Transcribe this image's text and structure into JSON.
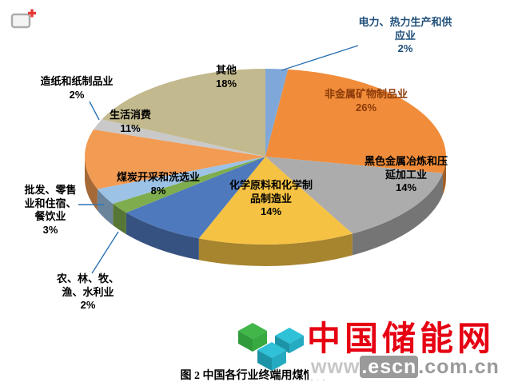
{
  "chart_data": {
    "type": "pie",
    "title": "图 2 中国各行业终端用煤情况",
    "total": 100,
    "unit": "%",
    "legend": "none",
    "style": "3d-pie-with-outside-labels",
    "segments": [
      {
        "label": "电力、热力生产和供应业",
        "pct": "2%",
        "value": 2,
        "color": "#7FA8D9"
      },
      {
        "label": "非金属矿物制品业",
        "pct": "26%",
        "value": 26,
        "color": "#F08C3A"
      },
      {
        "label": "黑色金属冶炼和压延加工业",
        "pct": "14%",
        "value": 14,
        "color": "#ACACAC"
      },
      {
        "label": "化学原料和化学制品制造业",
        "pct": "14%",
        "value": 14,
        "color": "#F5C243"
      },
      {
        "label": "煤炭开采和洗选业",
        "pct": "8%",
        "value": 8,
        "color": "#4E79BD"
      },
      {
        "label": "农、林、牧、渔、水利业",
        "pct": "2%",
        "value": 2,
        "color": "#7FAD4E"
      },
      {
        "label": "批发、零售业和住宿、餐饮业",
        "pct": "3%",
        "value": 3,
        "color": "#9CC2E5"
      },
      {
        "label": "生活消费",
        "pct": "11%",
        "value": 11,
        "color": "#F29B53"
      },
      {
        "label": "造纸和纸制品业",
        "pct": "2%",
        "value": 2,
        "color": "#C9C9C9"
      },
      {
        "label": "其他",
        "pct": "18%",
        "value": 18,
        "color": "#C3B98E"
      }
    ],
    "leader_line_color": "#2E74B5"
  },
  "watermark": {
    "site_name": "中国储能网",
    "url_www": "www",
    "url_escn": ".escn",
    "url_domain": ".com.cn"
  }
}
